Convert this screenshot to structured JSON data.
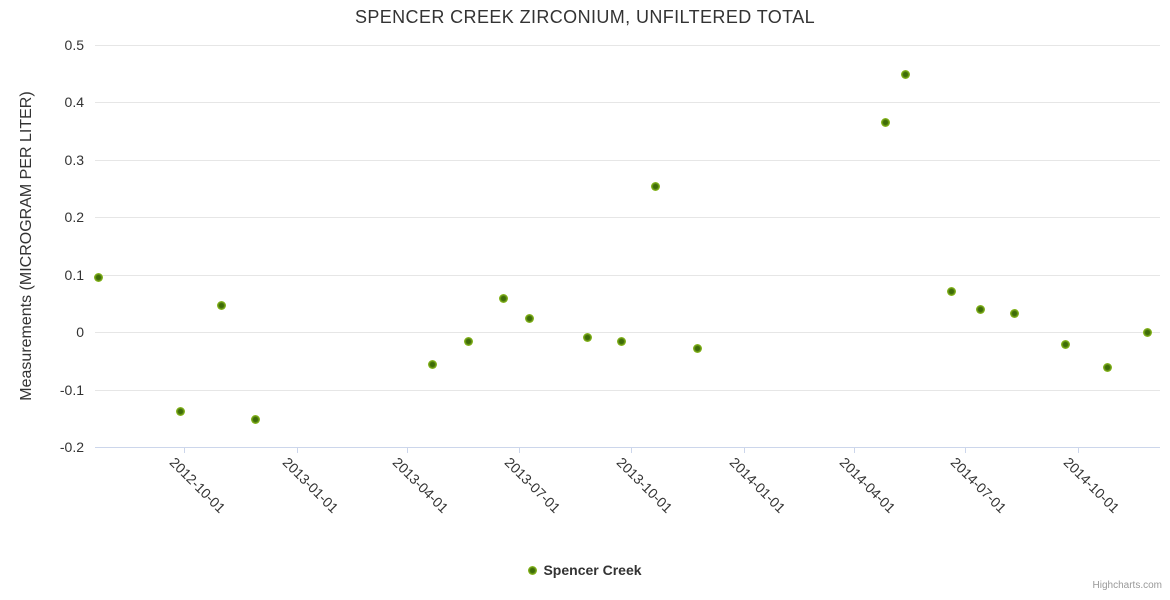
{
  "title": "SPENCER CREEK ZIRCONIUM, UNFILTERED TOTAL",
  "legend": {
    "label": "Spencer Creek"
  },
  "credits": {
    "label": "Highcharts.com"
  },
  "colors": {
    "marker_rim": "#86b51e",
    "marker_core": "#3e6c08",
    "grid": "#e6e6e6",
    "axis_line": "#ccd6eb",
    "text": "#333333",
    "credits_text": "#999999"
  },
  "chart_data": {
    "type": "scatter",
    "title": "SPENCER CREEK ZIRCONIUM, UNFILTERED TOTAL",
    "xlabel": "",
    "ylabel": "Measurements (MICROGRAM PER LITER)",
    "ylim": [
      -0.2,
      0.5
    ],
    "yticks": [
      0.5,
      0.4,
      0.3,
      0.2,
      0.1,
      0,
      -0.1,
      -0.2
    ],
    "yticklabels": [
      "0.5",
      "0.4",
      "0.3",
      "0.2",
      "0.1",
      "0",
      "-0.1",
      "-0.2"
    ],
    "xlim": [
      "2012-07-20",
      "2014-12-07"
    ],
    "xticks": [
      "2012-10-01",
      "2013-01-01",
      "2013-04-01",
      "2013-07-01",
      "2013-10-01",
      "2014-01-01",
      "2014-04-01",
      "2014-07-01",
      "2014-10-01"
    ],
    "xticklabels": [
      "2012-10-01",
      "2013-01-01",
      "2013-04-01",
      "2013-07-01",
      "2013-10-01",
      "2014-01-01",
      "2014-04-01",
      "2014-07-01",
      "2014-10-01"
    ],
    "grid": "horizontal-only",
    "legend_position": "bottom-center",
    "series": [
      {
        "name": "Spencer Creek",
        "points": [
          {
            "date": "2012-07-23",
            "value": 0.095
          },
          {
            "date": "2012-09-28",
            "value": -0.138
          },
          {
            "date": "2012-10-31",
            "value": 0.046
          },
          {
            "date": "2012-11-28",
            "value": -0.152
          },
          {
            "date": "2013-04-22",
            "value": -0.056
          },
          {
            "date": "2013-05-21",
            "value": -0.016
          },
          {
            "date": "2013-06-19",
            "value": 0.059
          },
          {
            "date": "2013-07-10",
            "value": 0.023
          },
          {
            "date": "2013-08-26",
            "value": -0.009
          },
          {
            "date": "2013-09-23",
            "value": -0.016
          },
          {
            "date": "2013-10-21",
            "value": 0.254
          },
          {
            "date": "2013-11-24",
            "value": -0.028
          },
          {
            "date": "2014-04-27",
            "value": 0.365
          },
          {
            "date": "2014-05-13",
            "value": 0.448
          },
          {
            "date": "2014-06-20",
            "value": 0.07
          },
          {
            "date": "2014-07-13",
            "value": 0.039
          },
          {
            "date": "2014-08-10",
            "value": 0.032
          },
          {
            "date": "2014-09-21",
            "value": -0.021
          },
          {
            "date": "2014-10-25",
            "value": -0.061
          },
          {
            "date": "2014-11-27",
            "value": 0.0
          }
        ]
      }
    ]
  }
}
